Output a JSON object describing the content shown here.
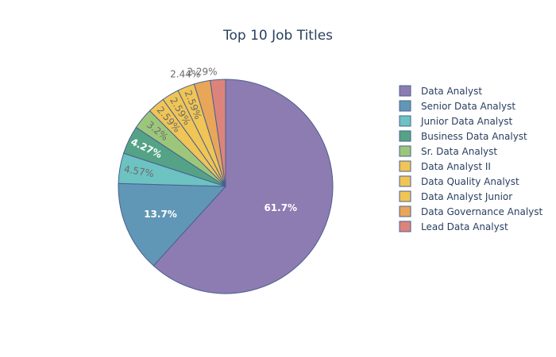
{
  "chart_data": {
    "type": "pie",
    "title": "Top 10 Job Titles",
    "legend_position": "right",
    "slices": [
      {
        "label": "Data Analyst",
        "value": 61.7,
        "display": "61.7%",
        "color": "#8d7cb1",
        "label_color": "#ffffff",
        "bold": true,
        "label_mode": "inside"
      },
      {
        "label": "Senior Data Analyst",
        "value": 13.7,
        "display": "13.7%",
        "color": "#6197b6",
        "label_color": "#ffffff",
        "bold": true,
        "label_mode": "inside"
      },
      {
        "label": "Junior Data Analyst",
        "value": 4.57,
        "display": "4.57%",
        "color": "#6dc2c2",
        "label_color": "#6b6b6b",
        "bold": false,
        "label_mode": "inside"
      },
      {
        "label": "Business Data Analyst",
        "value": 4.27,
        "display": "4.27%",
        "color": "#55a386",
        "label_color": "#ffffff",
        "bold": true,
        "label_mode": "inside"
      },
      {
        "label": "Sr. Data Analyst",
        "value": 3.2,
        "display": "3.2%",
        "color": "#9cc77b",
        "label_color": "#6b6b6b",
        "bold": false,
        "label_mode": "inside"
      },
      {
        "label": "Data Analyst II",
        "value": 2.59,
        "display": "2.59%",
        "color": "#f0c555",
        "label_color": "#6b6b6b",
        "bold": false,
        "label_mode": "inside"
      },
      {
        "label": "Data Quality Analyst",
        "value": 2.59,
        "display": "2.59%",
        "color": "#f0c555",
        "label_color": "#6b6b6b",
        "bold": false,
        "label_mode": "inside"
      },
      {
        "label": "Data Analyst Junior",
        "value": 2.59,
        "display": "2.59%",
        "color": "#f0c555",
        "label_color": "#6b6b6b",
        "bold": false,
        "label_mode": "inside"
      },
      {
        "label": "Data Governance Analyst",
        "value": 2.44,
        "display": "2.44%",
        "color": "#e9a659",
        "label_color": "#6b6b6b",
        "bold": false,
        "label_mode": "outside"
      },
      {
        "label": "Lead Data Analyst",
        "value": 2.29,
        "display": "2.29%",
        "color": "#dc847c",
        "label_color": "#6b6b6b",
        "bold": false,
        "label_mode": "outside"
      }
    ],
    "slice_border_color": "#4a6090"
  }
}
